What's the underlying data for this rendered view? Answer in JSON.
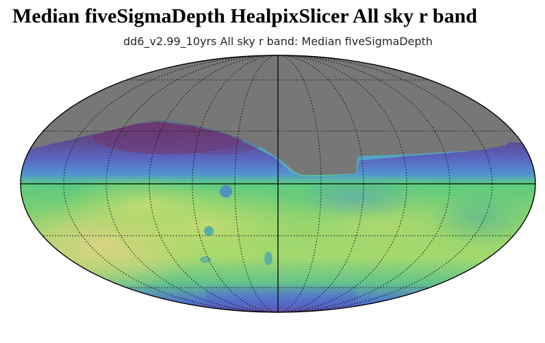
{
  "page": {
    "heading": "Median fiveSigmaDepth HealpixSlicer All sky r band"
  },
  "map": {
    "title": "dd6_v2.99_10yrs All sky r band: Median fiveSigmaDepth",
    "projection": "mollweide",
    "colormap": "viridis-like",
    "masked_color": "#777777",
    "gridline_style": "dotted",
    "colors": {
      "masked": "#777777",
      "deep": "#d9d87a",
      "mid_yellow": "#b7df5f",
      "green": "#58cb6a",
      "teal": "#45b29a",
      "blue": "#4f74cf",
      "indigo": "#5a4a9e",
      "purple": "#6e3168"
    }
  }
}
